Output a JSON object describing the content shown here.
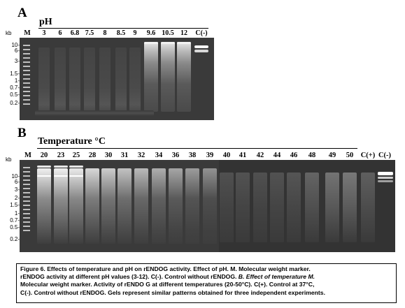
{
  "panel_a": {
    "letter": "A",
    "header": "pH",
    "kb_label": "kb",
    "lanes": [
      "M",
      "3",
      "6",
      "6.8",
      "7.5",
      "8",
      "8.5",
      "9",
      "9.6",
      "10.5",
      "12",
      "C(-)"
    ],
    "markers": [
      "10-",
      "6-",
      "3-",
      "1.5-",
      "1-",
      "0.7-",
      "0.5-",
      "0.2-"
    ]
  },
  "panel_b": {
    "letter": "B",
    "header": "Temperature °C",
    "kb_label": "kb",
    "lanes": [
      "M",
      "20",
      "23",
      "25",
      "28",
      "30",
      "31",
      "32",
      "34",
      "36",
      "38",
      "39",
      "40",
      "41",
      "42",
      "44",
      "46",
      "48",
      "49",
      "50",
      "C(+)",
      "C(-)"
    ],
    "markers": [
      "10-",
      "6-",
      "3-",
      "2-",
      "1.5-",
      "1-",
      "0.7-",
      "0.5-",
      "0.2-"
    ]
  },
  "caption": {
    "line1": "Figure 6. Effects of temperature and pH on rENDOG activity. Effect of pH. M. Molecular weight marker.",
    "line2": "rENDOG activity at different pH values (3-12). C(-). Control without rENDOG.",
    "line2_italic": " B. Effect of temperature M.",
    "line3": "Molecular weight marker. Activity of rENDO G at different temperatures (20-50°C). C(+). Control at 37°C,",
    "line4": "C(-). Control without rENDOG. Gels represent similar patterns obtained for three independent experiments."
  },
  "colors": {
    "gel": "#3a3a3a",
    "band": "#f2f2f2",
    "ladder": "#bfbfbf"
  }
}
